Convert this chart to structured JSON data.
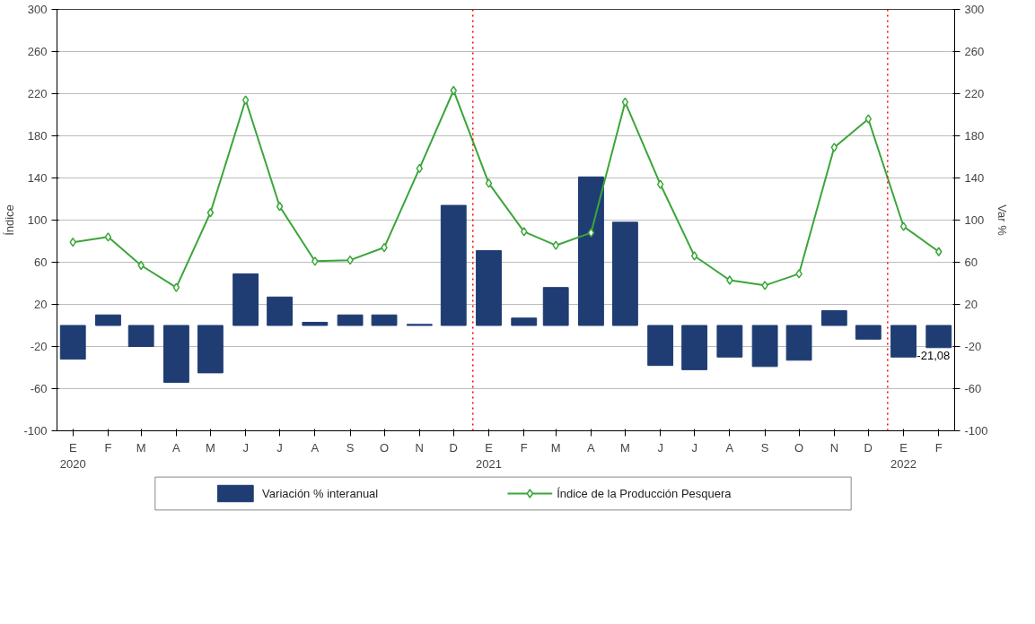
{
  "chart_data": {
    "type": "bar",
    "x": [
      "2020-01-15",
      "2020-02-15",
      "2020-03-15",
      "2020-04-15",
      "2020-05-15",
      "2020-06-15",
      "2020-07-15",
      "2020-08-15",
      "2020-09-15",
      "2020-10-15",
      "2020-11-15",
      "2020-12-15",
      "2021-01-15",
      "2021-02-15",
      "2021-03-15",
      "2021-04-15",
      "2021-05-15",
      "2021-06-15",
      "2021-07-15",
      "2021-08-15",
      "2021-09-15",
      "2021-10-15",
      "2021-11-15",
      "2021-12-15",
      "2022-01-15",
      "2022-02-15"
    ],
    "series": [
      {
        "name": "Variación % interanual",
        "axis": "y2",
        "color": "#1f3d73",
        "values": [
          -32,
          10,
          -20,
          -54,
          -45,
          49,
          27,
          3,
          10,
          10,
          1,
          114,
          71,
          7,
          36,
          141,
          98,
          -38,
          -42,
          -30,
          -39,
          -33,
          14,
          -13,
          -30,
          -21.08
        ],
        "value_labels": [
          null,
          null,
          null,
          null,
          null,
          null,
          null,
          null,
          null,
          null,
          null,
          null,
          null,
          null,
          null,
          null,
          null,
          null,
          null,
          null,
          null,
          null,
          null,
          null,
          null,
          "-21,08"
        ]
      },
      {
        "name": "Índice de la Producción Pesquera",
        "type": "line",
        "color": "#3aa63a",
        "marker": "diamond",
        "values": [
          79,
          84,
          57,
          36,
          107,
          214,
          113,
          61,
          62,
          74,
          149,
          223,
          135,
          89,
          76,
          88,
          212,
          134,
          66,
          43,
          38,
          49,
          169,
          196,
          94,
          70
        ]
      }
    ],
    "xlim": [
      "2020-01-01",
      "2022-03-01"
    ],
    "xticks": [
      {
        "value": "2020-01-15",
        "label": "E\n2020"
      },
      {
        "value": "2020-02-15",
        "label": "F"
      },
      {
        "value": "2020-03-15",
        "label": "M"
      },
      {
        "value": "2020-04-15",
        "label": "A"
      },
      {
        "value": "2020-05-15",
        "label": "M"
      },
      {
        "value": "2020-06-15",
        "label": "J"
      },
      {
        "value": "2020-07-15",
        "label": "J"
      },
      {
        "value": "2020-08-15",
        "label": "A"
      },
      {
        "value": "2020-09-15",
        "label": "S"
      },
      {
        "value": "2020-10-15",
        "label": "O"
      },
      {
        "value": "2020-11-15",
        "label": "N"
      },
      {
        "value": "2020-12-15",
        "label": "D"
      },
      {
        "value": "2021-01-15",
        "label": "E\n2021"
      },
      {
        "value": "2021-02-15",
        "label": "F"
      },
      {
        "value": "2021-03-15",
        "label": "M"
      },
      {
        "value": "2021-04-15",
        "label": "A"
      },
      {
        "value": "2021-05-15",
        "label": "M"
      },
      {
        "value": "2021-06-15",
        "label": "J"
      },
      {
        "value": "2021-07-15",
        "label": "J"
      },
      {
        "value": "2021-08-15",
        "label": "A"
      },
      {
        "value": "2021-09-15",
        "label": "S"
      },
      {
        "value": "2021-10-15",
        "label": "O"
      },
      {
        "value": "2021-11-15",
        "label": "N"
      },
      {
        "value": "2021-12-15",
        "label": "D"
      },
      {
        "value": "2022-01-15",
        "label": "E\n2022"
      },
      {
        "value": "2022-02-15",
        "label": "F"
      }
    ],
    "ylabel": "Índice",
    "y2label": "Var %",
    "ylim": [
      -100,
      300
    ],
    "yticks": [
      -100,
      -60,
      -20,
      20,
      60,
      100,
      140,
      180,
      220,
      260,
      300
    ],
    "y2lim": [
      -100,
      300
    ],
    "y2ticks": [
      -100,
      -60,
      -20,
      20,
      60,
      100,
      140,
      180,
      220,
      260,
      300
    ],
    "ref_lines": [
      {
        "axis": "x",
        "value": "2021-01-01",
        "color": "#ff0000",
        "line_style": "dotted"
      },
      {
        "axis": "x",
        "value": "2022-01-01",
        "color": "#ff0000",
        "line_style": "dotted"
      }
    ],
    "grid": "y",
    "legend": "bottom"
  }
}
